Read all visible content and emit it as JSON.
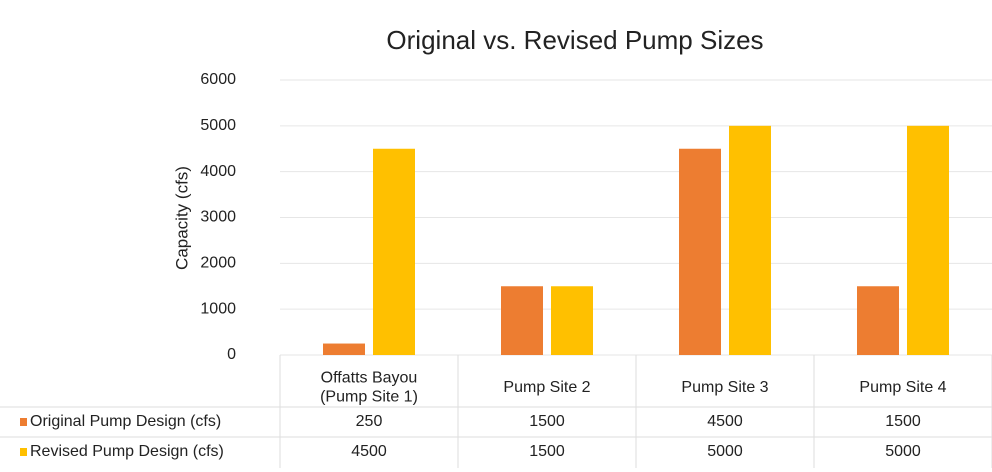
{
  "chart_data": {
    "type": "bar",
    "title": "Original vs. Revised Pump Sizes",
    "ylabel": "Capacity (cfs)",
    "categories": [
      "Offatts Bayou\n(Pump Site 1)",
      "Pump Site 2",
      "Pump Site 3",
      "Pump Site 4"
    ],
    "series": [
      {
        "name": "Original Pump Design (cfs)",
        "color": "#ed7d31",
        "values": [
          250,
          1500,
          4500,
          1500
        ]
      },
      {
        "name": "Revised Pump Design (cfs)",
        "color": "#ffc000",
        "values": [
          4500,
          1500,
          5000,
          5000
        ]
      }
    ],
    "ylim": [
      0,
      6000
    ],
    "yticks": [
      0,
      1000,
      2000,
      3000,
      4000,
      5000,
      6000
    ],
    "grid": true
  }
}
